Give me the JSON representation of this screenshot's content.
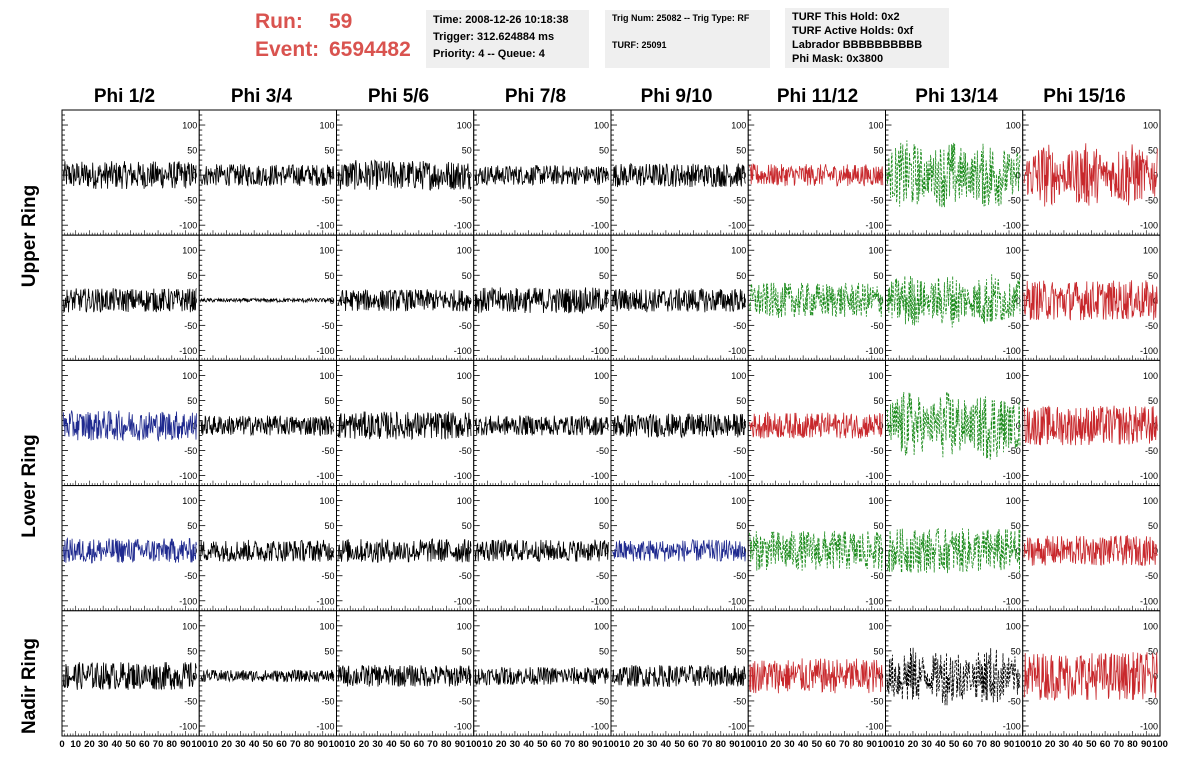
{
  "header": {
    "run_label": "Run:",
    "run_value": "59",
    "event_label": "Event:",
    "event_value": "6594482",
    "time": "Time: 2008-12-26 10:18:38",
    "trigger": "Trigger: 312.624884 ms",
    "priority": "Priority: 4 -- Queue: 4",
    "trig_num": "Trig Num: 25082 -- Trig Type: RF",
    "turf": "TURF: 25091",
    "turf_hold": "TURF This Hold: 0x2",
    "turf_active": "TURF Active Holds: 0xf",
    "labrador": "Labrador BBBBBBBBBB",
    "phi_mask": "Phi Mask: 0x3800",
    "accent_color": "#d9534f"
  },
  "chart_data": {
    "type": "line",
    "columns": [
      "Phi 1/2",
      "Phi 3/4",
      "Phi 5/6",
      "Phi 7/8",
      "Phi 9/10",
      "Phi 11/12",
      "Phi 13/14",
      "Phi 15/16"
    ],
    "rows": [
      "Upper Ring",
      "Upper Ring",
      "Lower Ring",
      "Lower Ring",
      "Nadir Ring"
    ],
    "row_labels": [
      "Upper Ring",
      "Lower Ring",
      "Nadir Ring"
    ],
    "xlim": [
      0,
      100
    ],
    "ylim": [
      -120,
      130
    ],
    "y_ticks": [
      -100,
      -50,
      0,
      50,
      100
    ],
    "x_ticks": [
      0,
      10,
      20,
      30,
      40,
      50,
      60,
      70,
      80,
      90,
      100
    ],
    "colors": {
      "black": "#000000",
      "red": "#c8282c",
      "green": "#1a8a1a",
      "blue": "#1f2a8f"
    },
    "panels": [
      [
        "black:28",
        "black:22",
        "black:30",
        "black:20",
        "black:24",
        "red:22",
        "green:70",
        "red:65"
      ],
      [
        "black:24",
        "black:4",
        "black:22",
        "black:26",
        "black:24",
        "green:35",
        "green:55",
        "red:40"
      ],
      [
        "blue:30",
        "black:20",
        "black:28",
        "black:20",
        "black:24",
        "red:26",
        "green:70",
        "red:40"
      ],
      [
        "blue:25",
        "black:22",
        "black:24",
        "black:22",
        "blue:22",
        "green:40",
        "green:45",
        "red:30"
      ],
      [
        "black:28",
        "black:12",
        "black:22",
        "black:18",
        "black:22",
        "red:35",
        "black:60",
        "red:48"
      ]
    ]
  }
}
